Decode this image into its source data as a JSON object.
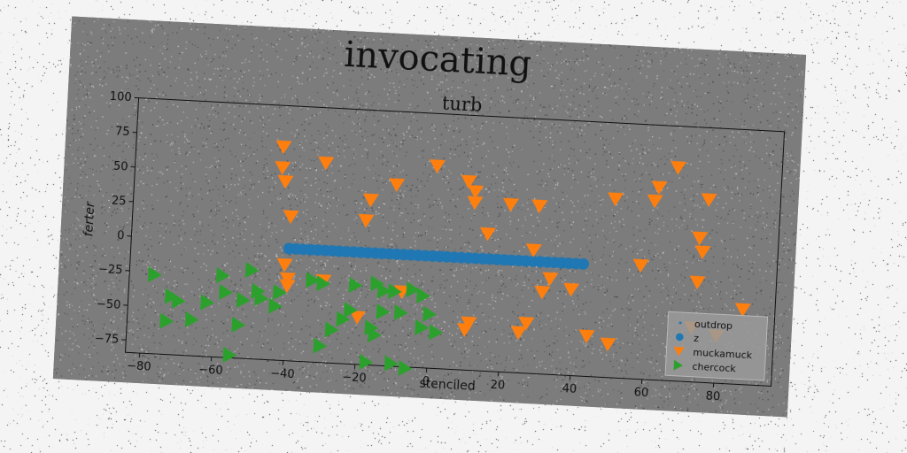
{
  "chart_data": {
    "type": "scatter",
    "title": "invocating",
    "subtitle": "turb",
    "xlabel": "stenciled",
    "ylabel": "ferter",
    "xlim": [
      -84,
      96
    ],
    "ylim": [
      -84,
      100
    ],
    "xticks": [
      -80,
      -60,
      -40,
      -20,
      0,
      20,
      40,
      60,
      80
    ],
    "yticks": [
      -75,
      -50,
      -25,
      0,
      25,
      50,
      75,
      100
    ],
    "legend_position": "lower-right",
    "colors": {
      "background": "#7c7c7c",
      "blue": "#1f77b4",
      "orange": "#ff7f0e",
      "green": "#2ca02c"
    },
    "series": [
      {
        "name": "outdrop",
        "marker": "point",
        "color": "#1f77b4",
        "points": []
      },
      {
        "name": "z",
        "marker": "circle",
        "color": "#1f77b4",
        "points": [
          [
            -40,
            -3
          ],
          [
            -38,
            -3
          ],
          [
            -36,
            -3
          ],
          [
            -34,
            -3
          ],
          [
            -32,
            -3
          ],
          [
            -30,
            -3
          ],
          [
            -28,
            -3
          ],
          [
            -26,
            -3
          ],
          [
            -24,
            -3
          ],
          [
            -22,
            -3
          ],
          [
            -20,
            -3
          ],
          [
            -18,
            -3
          ],
          [
            -16,
            -3
          ],
          [
            -14,
            -3
          ],
          [
            -12,
            -3
          ],
          [
            -10,
            -3
          ],
          [
            -8,
            -3
          ],
          [
            -6,
            -3
          ],
          [
            -4,
            -3
          ],
          [
            -2,
            -3
          ],
          [
            0,
            -3
          ],
          [
            2,
            -3
          ],
          [
            4,
            -3
          ],
          [
            6,
            -3
          ],
          [
            8,
            -3
          ],
          [
            10,
            -3
          ],
          [
            12,
            -3
          ],
          [
            14,
            -3
          ],
          [
            16,
            -3
          ],
          [
            18,
            -3
          ],
          [
            20,
            -3
          ],
          [
            22,
            -3
          ],
          [
            24,
            -3
          ],
          [
            26,
            -3
          ],
          [
            28,
            -3
          ],
          [
            30,
            -3
          ],
          [
            32,
            -3
          ],
          [
            34,
            -3
          ],
          [
            36,
            -3
          ],
          [
            38,
            -3
          ],
          [
            40,
            -3
          ],
          [
            42,
            -3
          ]
        ]
      },
      {
        "name": "muckamuck",
        "marker": "triangle-down",
        "color": "#ff7f0e",
        "points": [
          [
            -43,
            70
          ],
          [
            -43,
            55
          ],
          [
            -42,
            45
          ],
          [
            -40,
            20
          ],
          [
            -31,
            60
          ],
          [
            -18,
            35
          ],
          [
            -19,
            20
          ],
          [
            -11,
            47
          ],
          [
            0,
            62
          ],
          [
            9,
            52
          ],
          [
            11,
            45
          ],
          [
            11,
            37
          ],
          [
            15,
            15
          ],
          [
            21,
            37
          ],
          [
            29,
            37
          ],
          [
            28,
            5
          ],
          [
            31,
            -25
          ],
          [
            33,
            -15
          ],
          [
            39,
            -22
          ],
          [
            44,
            -55
          ],
          [
            50,
            -60
          ],
          [
            25,
            -55
          ],
          [
            27,
            -48
          ],
          [
            11,
            -50
          ],
          [
            10,
            -55
          ],
          [
            -20,
            -50
          ],
          [
            -8,
            -30
          ],
          [
            -30,
            -25
          ],
          [
            -40,
            -30
          ],
          [
            -40,
            -25
          ],
          [
            -41,
            -15
          ],
          [
            50,
            45
          ],
          [
            62,
            55
          ],
          [
            61,
            45
          ],
          [
            67,
            70
          ],
          [
            74,
            20
          ],
          [
            75,
            10
          ],
          [
            74,
            -12
          ],
          [
            76,
            48
          ],
          [
            58,
            -2
          ],
          [
            73,
            -45
          ],
          [
            80,
            -50
          ],
          [
            87,
            -30
          ]
        ]
      },
      {
        "name": "chercock",
        "marker": "triangle-right",
        "color": "#2ca02c",
        "points": [
          [
            -77,
            -27
          ],
          [
            -72,
            -42
          ],
          [
            -70,
            -45
          ],
          [
            -73,
            -60
          ],
          [
            -66,
            -58
          ],
          [
            -62,
            -45
          ],
          [
            -58,
            -25
          ],
          [
            -57,
            -37
          ],
          [
            -52,
            -42
          ],
          [
            -53,
            -60
          ],
          [
            -50,
            -20
          ],
          [
            -48,
            -35
          ],
          [
            -47,
            -40
          ],
          [
            -43,
            -45
          ],
          [
            -42,
            -35
          ],
          [
            -33,
            -25
          ],
          [
            -30,
            -27
          ],
          [
            -27,
            -60
          ],
          [
            -30,
            -72
          ],
          [
            -21,
            -27
          ],
          [
            -15,
            -25
          ],
          [
            -13,
            -45
          ],
          [
            -16,
            -57
          ],
          [
            -15,
            -62
          ],
          [
            -10,
            -30
          ],
          [
            -8,
            -45
          ],
          [
            -5,
            -28
          ],
          [
            -2,
            -32
          ],
          [
            0,
            -45
          ],
          [
            -2,
            -55
          ],
          [
            2,
            -58
          ],
          [
            -17,
            -82
          ],
          [
            -10,
            -82
          ],
          [
            -6,
            -85
          ],
          [
            -55,
            -82
          ],
          [
            -22,
            -45
          ],
          [
            -13,
            -30
          ],
          [
            -24,
            -52
          ]
        ]
      }
    ]
  }
}
